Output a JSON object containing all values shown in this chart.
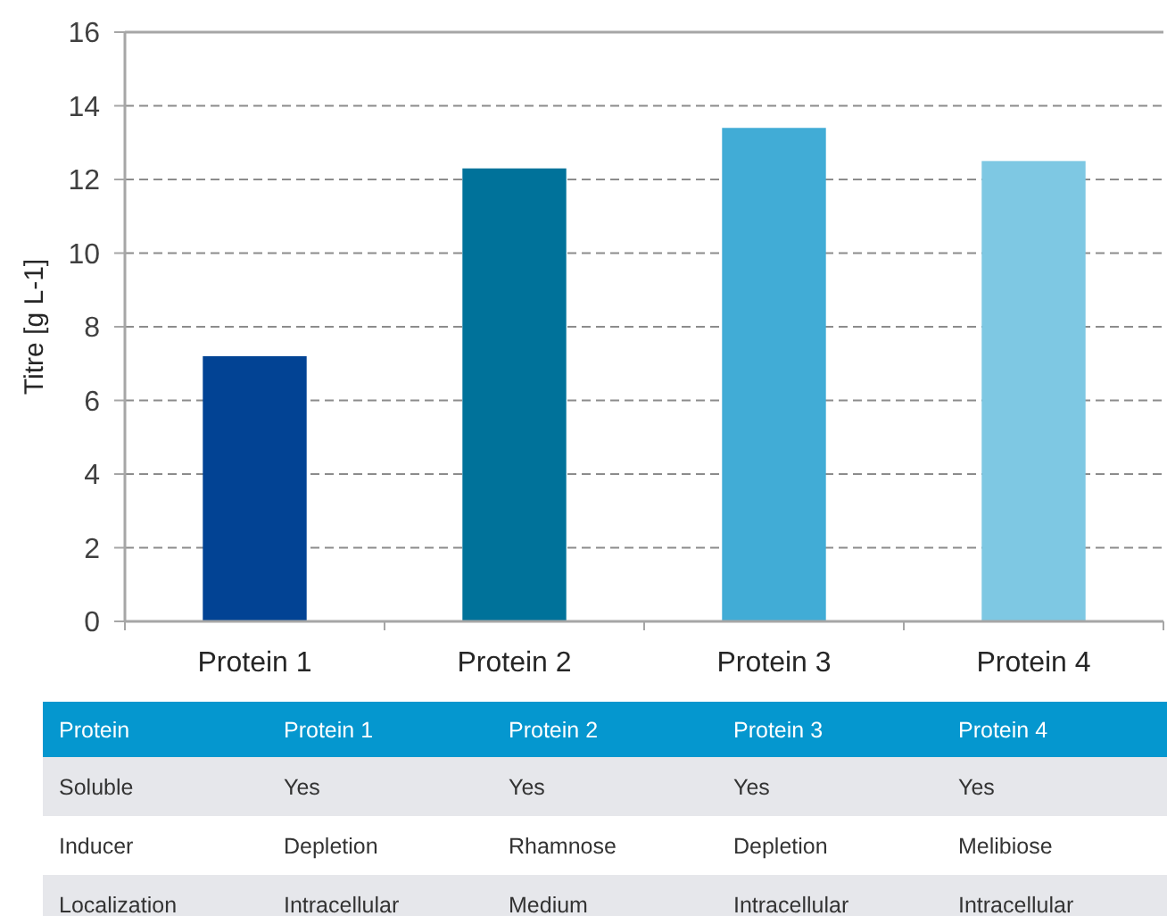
{
  "chart_data": [
    {
      "type": "bar",
      "ylabel": "Titre [g L-1]",
      "categories": [
        "Protein 1",
        "Protein 2",
        "Protein 3",
        "Protein 4"
      ],
      "values": [
        7.2,
        12.3,
        13.4,
        12.5
      ],
      "colors": [
        "#024394",
        "#00729a",
        "#41acd6",
        "#7ec8e3"
      ],
      "ylim": [
        0,
        16
      ],
      "yticks": [
        0,
        2,
        4,
        6,
        8,
        10,
        12,
        14,
        16
      ],
      "grid": "y"
    },
    {
      "type": "other",
      "categories": [
        "Protein",
        "Protein 1",
        "Protein 2",
        "Protein 3",
        "Protein 4"
      ],
      "y_categories": [
        "Soluble",
        "Inducer",
        "Localization"
      ],
      "cell_labels": [
        [
          "Yes",
          "Yes",
          "Yes",
          "Yes"
        ],
        [
          "Depletion",
          "Rhamnose",
          "Depletion",
          "Melibiose"
        ],
        [
          "Intracellular",
          "Medium",
          "Intracellular",
          "Intracellular"
        ]
      ]
    }
  ]
}
